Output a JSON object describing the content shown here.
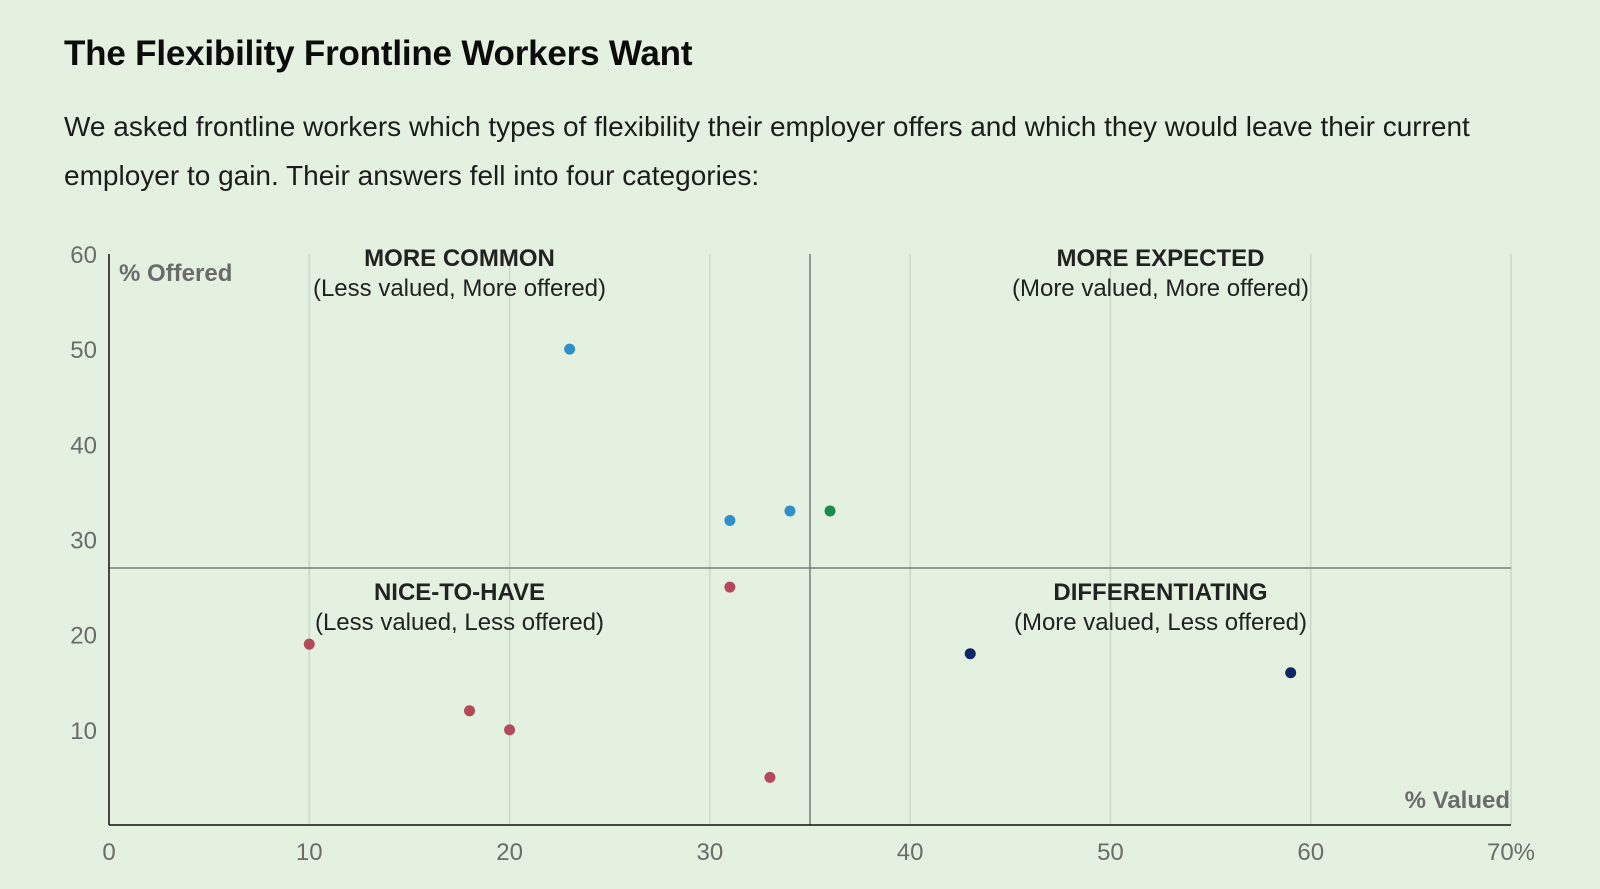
{
  "title": "The Flexibility Frontline Workers Want",
  "subtitle": "We asked frontline workers which types of flexibility their employer offers and which they would leave their current employer to gain. Their answers fell into four categories:",
  "chart_data": {
    "type": "scatter",
    "xlabel": "% Valued",
    "ylabel": "% Offered",
    "xlim": [
      0,
      70
    ],
    "ylim": [
      0,
      60
    ],
    "x_ticks": [
      "0",
      "10",
      "20",
      "30",
      "40",
      "50",
      "60",
      "70%"
    ],
    "y_ticks": [
      "10",
      "20",
      "30",
      "40",
      "50",
      "60"
    ],
    "grid": "vertical",
    "divider": {
      "x": 35,
      "y": 27
    },
    "quadrants": [
      {
        "title": "MORE COMMON",
        "subtitle": "(Less valued, More offered)"
      },
      {
        "title": "MORE EXPECTED",
        "subtitle": "(More valued, More offered)"
      },
      {
        "title": "NICE-TO-HAVE",
        "subtitle": "(Less valued, Less offered)"
      },
      {
        "title": "DIFFERENTIATING",
        "subtitle": "(More valued, Less offered)"
      }
    ],
    "colors": {
      "more_common": "#2e8fc9",
      "more_expected": "#1a8a4e",
      "nice_to_have": "#b34a5c",
      "differentiating": "#0e2566"
    },
    "points": [
      {
        "x": 23,
        "y": 50,
        "group": "more_common"
      },
      {
        "x": 31,
        "y": 32,
        "group": "more_common"
      },
      {
        "x": 34,
        "y": 33,
        "group": "more_common"
      },
      {
        "x": 36,
        "y": 33,
        "group": "more_expected"
      },
      {
        "x": 31,
        "y": 25,
        "group": "nice_to_have"
      },
      {
        "x": 10,
        "y": 19,
        "group": "nice_to_have"
      },
      {
        "x": 18,
        "y": 12,
        "group": "nice_to_have"
      },
      {
        "x": 20,
        "y": 10,
        "group": "nice_to_have"
      },
      {
        "x": 33,
        "y": 5,
        "group": "nice_to_have"
      },
      {
        "x": 43,
        "y": 18,
        "group": "differentiating"
      },
      {
        "x": 59,
        "y": 16,
        "group": "differentiating"
      }
    ]
  }
}
